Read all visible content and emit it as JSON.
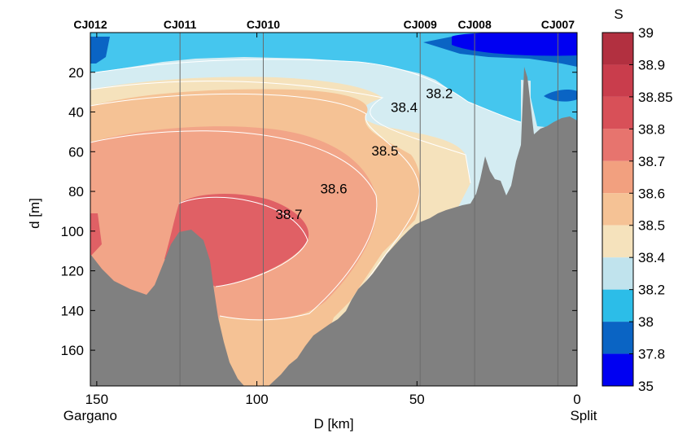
{
  "chart_data": {
    "type": "contour",
    "xlabel": "D [km]",
    "ylabel": "d [m]",
    "xlim": [
      152,
      0
    ],
    "ylim": [
      0,
      178
    ],
    "x_ticks": [
      150,
      100,
      50,
      0
    ],
    "y_ticks": [
      20,
      40,
      60,
      80,
      100,
      120,
      140,
      160
    ],
    "x_endpoint_labels": [
      {
        "x": 150,
        "text": "Gargano"
      },
      {
        "x": 0,
        "text": "Split"
      }
    ],
    "stations": [
      {
        "name": "CJ012",
        "x": 152
      },
      {
        "name": "CJ011",
        "x": 124
      },
      {
        "name": "CJ010",
        "x": 98
      },
      {
        "name": "CJ009",
        "x": 49
      },
      {
        "name": "CJ008",
        "x": 32
      },
      {
        "name": "CJ007",
        "x": 6
      }
    ],
    "contour_labels": [
      {
        "text": "38.2",
        "x": 43,
        "y": 33
      },
      {
        "text": "38.4",
        "x": 54,
        "y": 40
      },
      {
        "text": "38.5",
        "x": 60,
        "y": 62
      },
      {
        "text": "38.6",
        "x": 76,
        "y": 81
      },
      {
        "text": "38.7",
        "x": 90,
        "y": 94
      }
    ],
    "colorbar": {
      "title": "S",
      "levels": [
        "39",
        "38.9",
        "38.85",
        "38.8",
        "38.7",
        "38.6",
        "38.5",
        "38.4",
        "38.2",
        "38",
        "37.8",
        "35"
      ],
      "colors": [
        "#b23040",
        "#c93d4c",
        "#d85058",
        "#e7746e",
        "#f2a07f",
        "#f5c295",
        "#f5e2bc",
        "#c0e3ed",
        "#2cbde8",
        "#0a64c4",
        "#0000f2"
      ]
    },
    "colors": {
      "bathymetry": "#808080",
      "s_35_37_8": "#0000f2",
      "s_37_8_38": "#0a64c4",
      "s_38_38_2": "#45c6ee",
      "s_38_2_38_4": "#d4ecf2",
      "s_38_4_38_5": "#f5e2bc",
      "s_38_5_38_6": "#f5c295",
      "s_38_6_38_7": "#f2a588",
      "s_38_7_38_8": "#e06065"
    }
  }
}
